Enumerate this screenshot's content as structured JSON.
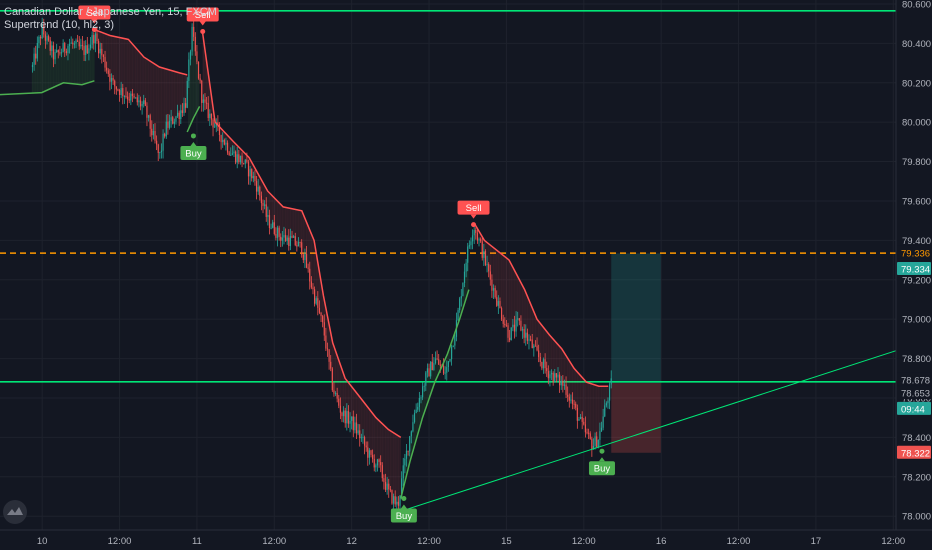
{
  "legend": {
    "symbol": "Canadian Dollar / Japanese Yen, 15, FXCM",
    "indicator": "Supertrend (10, hl2, 3)"
  },
  "colors": {
    "background": "#131722",
    "grid": "#1e222d",
    "candle_up": "#26a69a",
    "candle_down": "#ef5350",
    "supertrend_up": "#4caf50",
    "supertrend_down": "#ff5252",
    "trendline": "#00e676",
    "horizontal_level": "#00e676",
    "dashed_level": "#ff9800",
    "target_zone": "rgba(38,166,154,0.22)",
    "stop_zone": "rgba(239,83,80,0.24)"
  },
  "chart_data": {
    "type": "candlestick",
    "title": "Canadian Dollar / Japanese Yen, 15, FXCM",
    "indicator": "Supertrend (10, hl2, 3)",
    "y_axis": {
      "ticks": [
        "80.600",
        "80.400",
        "80.200",
        "80.000",
        "79.800",
        "79.600",
        "79.400",
        "79.200",
        "79.000",
        "78.800",
        "78.600",
        "78.400",
        "78.200",
        "78.000"
      ],
      "range": [
        77.93,
        80.62
      ],
      "position": "right"
    },
    "x_axis": {
      "ticks": [
        {
          "label": "10",
          "t": 0.0625
        },
        {
          "label": "12:00",
          "t": 0.5625
        },
        {
          "label": "11",
          "t": 1.0625
        },
        {
          "label": "12:00",
          "t": 1.5625
        },
        {
          "label": "12",
          "t": 2.0625
        },
        {
          "label": "12:00",
          "t": 2.5625
        },
        {
          "label": "15",
          "t": 3.0625
        },
        {
          "label": "12:00",
          "t": 3.5625
        },
        {
          "label": "16",
          "t": 4.0625
        },
        {
          "label": "12:00",
          "t": 4.5625
        },
        {
          "label": "17",
          "t": 5.0625
        },
        {
          "label": "12:00",
          "t": 5.5625
        }
      ],
      "range": [
        -0.21,
        5.58
      ]
    },
    "price_path": [
      [
        0.0,
        80.28
      ],
      [
        0.06,
        80.47
      ],
      [
        0.14,
        80.33
      ],
      [
        0.24,
        80.4
      ],
      [
        0.34,
        80.36
      ],
      [
        0.4,
        80.44
      ],
      [
        0.52,
        80.19
      ],
      [
        0.62,
        80.13
      ],
      [
        0.72,
        80.08
      ],
      [
        0.82,
        79.82
      ],
      [
        0.86,
        79.97
      ],
      [
        0.95,
        80.05
      ],
      [
        0.99,
        80.1
      ],
      [
        1.03,
        80.46
      ],
      [
        1.1,
        80.1
      ],
      [
        1.18,
        79.98
      ],
      [
        1.28,
        79.85
      ],
      [
        1.36,
        79.8
      ],
      [
        1.44,
        79.7
      ],
      [
        1.52,
        79.5
      ],
      [
        1.6,
        79.42
      ],
      [
        1.67,
        79.4
      ],
      [
        1.74,
        79.36
      ],
      [
        1.82,
        79.12
      ],
      [
        1.88,
        78.95
      ],
      [
        1.94,
        78.65
      ],
      [
        2.0,
        78.52
      ],
      [
        2.06,
        78.48
      ],
      [
        2.12,
        78.4
      ],
      [
        2.18,
        78.3
      ],
      [
        2.24,
        78.25
      ],
      [
        2.3,
        78.12
      ],
      [
        2.36,
        78.05
      ],
      [
        2.4,
        78.25
      ],
      [
        2.46,
        78.5
      ],
      [
        2.54,
        78.7
      ],
      [
        2.6,
        78.8
      ],
      [
        2.67,
        78.72
      ],
      [
        2.74,
        78.98
      ],
      [
        2.8,
        79.3
      ],
      [
        2.85,
        79.48
      ],
      [
        2.9,
        79.36
      ],
      [
        2.96,
        79.2
      ],
      [
        3.02,
        79.05
      ],
      [
        3.08,
        78.92
      ],
      [
        3.14,
        78.98
      ],
      [
        3.2,
        78.9
      ],
      [
        3.26,
        78.82
      ],
      [
        3.32,
        78.74
      ],
      [
        3.38,
        78.7
      ],
      [
        3.44,
        78.66
      ],
      [
        3.5,
        78.55
      ],
      [
        3.56,
        78.44
      ],
      [
        3.62,
        78.36
      ],
      [
        3.66,
        78.4
      ],
      [
        3.7,
        78.55
      ],
      [
        3.74,
        78.67
      ]
    ],
    "supertrend_segments": [
      {
        "trend": "up",
        "points": [
          [
            -0.21,
            80.14
          ],
          [
            0.06,
            80.15
          ],
          [
            0.2,
            80.2
          ],
          [
            0.32,
            80.19
          ],
          [
            0.4,
            80.21
          ]
        ]
      },
      {
        "trend": "down",
        "points": [
          [
            0.4,
            80.47
          ],
          [
            0.5,
            80.44
          ],
          [
            0.62,
            80.42
          ],
          [
            0.72,
            80.33
          ],
          [
            0.82,
            80.28
          ],
          [
            0.95,
            80.25
          ],
          [
            1.0,
            80.24
          ]
        ]
      },
      {
        "trend": "up",
        "points": [
          [
            1.0,
            79.95
          ],
          [
            1.04,
            80.02
          ],
          [
            1.08,
            80.08
          ]
        ]
      },
      {
        "trend": "down",
        "points": [
          [
            1.1,
            80.45
          ],
          [
            1.18,
            80.0
          ],
          [
            1.3,
            79.9
          ],
          [
            1.4,
            79.82
          ],
          [
            1.52,
            79.65
          ],
          [
            1.62,
            79.57
          ],
          [
            1.74,
            79.55
          ],
          [
            1.82,
            79.4
          ],
          [
            1.88,
            79.12
          ],
          [
            1.94,
            78.88
          ],
          [
            2.02,
            78.7
          ],
          [
            2.12,
            78.6
          ],
          [
            2.22,
            78.5
          ],
          [
            2.3,
            78.44
          ],
          [
            2.38,
            78.4
          ]
        ]
      },
      {
        "trend": "up",
        "points": [
          [
            2.38,
            78.09
          ],
          [
            2.44,
            78.28
          ],
          [
            2.52,
            78.5
          ],
          [
            2.6,
            78.68
          ],
          [
            2.68,
            78.82
          ],
          [
            2.76,
            79.0
          ],
          [
            2.82,
            79.15
          ]
        ]
      },
      {
        "trend": "down",
        "points": [
          [
            2.86,
            79.48
          ],
          [
            2.92,
            79.4
          ],
          [
            3.0,
            79.35
          ],
          [
            3.08,
            79.3
          ],
          [
            3.18,
            79.15
          ],
          [
            3.26,
            79.0
          ],
          [
            3.34,
            78.92
          ],
          [
            3.42,
            78.85
          ],
          [
            3.5,
            78.75
          ],
          [
            3.58,
            78.68
          ],
          [
            3.66,
            78.66
          ],
          [
            3.72,
            78.66
          ]
        ]
      }
    ],
    "signals": [
      {
        "label": "Sell",
        "type": "sell",
        "t": 0.4,
        "price": 80.47
      },
      {
        "label": "Buy",
        "type": "buy",
        "t": 1.04,
        "price": 79.93
      },
      {
        "label": "Sell",
        "type": "sell",
        "t": 1.1,
        "price": 80.46
      },
      {
        "label": "Sell",
        "type": "sell",
        "t": 2.85,
        "price": 79.48
      },
      {
        "label": "Buy",
        "type": "buy",
        "t": 2.4,
        "price": 78.09
      },
      {
        "label": "Buy",
        "type": "buy",
        "t": 3.68,
        "price": 78.33
      }
    ],
    "horizontal_lines": [
      {
        "price": 80.565,
        "style": "solid",
        "color": "#00e676"
      },
      {
        "price": 78.682,
        "style": "solid",
        "color": "#00e676"
      },
      {
        "price": 79.335,
        "style": "dashed",
        "color": "#ff9800"
      }
    ],
    "trendline": {
      "from": [
        2.36,
        78.02
      ],
      "to": [
        5.58,
        78.84
      ]
    },
    "position": {
      "t_start": 3.74,
      "t_end": 4.06,
      "entry": 78.676,
      "target": 79.334,
      "stop": 78.322
    },
    "price_tags": [
      {
        "label": "79.336",
        "price": 79.336,
        "bg": "none",
        "color": "#ff9800"
      },
      {
        "label": "79.334",
        "price": 79.255,
        "bg": "#26a69a",
        "color": "#ffffff"
      },
      {
        "label": "78.678",
        "price": 78.692,
        "bg": "none",
        "color": "#b2b5be"
      },
      {
        "label": "78.653",
        "price": 78.625,
        "bg": "none",
        "color": "#b2b5be"
      },
      {
        "label": "09:44",
        "price": 78.545,
        "bg": "#26a69a",
        "color": "#ffffff"
      },
      {
        "label": "78.322",
        "price": 78.322,
        "bg": "#ef5350",
        "color": "#ffffff"
      }
    ]
  }
}
